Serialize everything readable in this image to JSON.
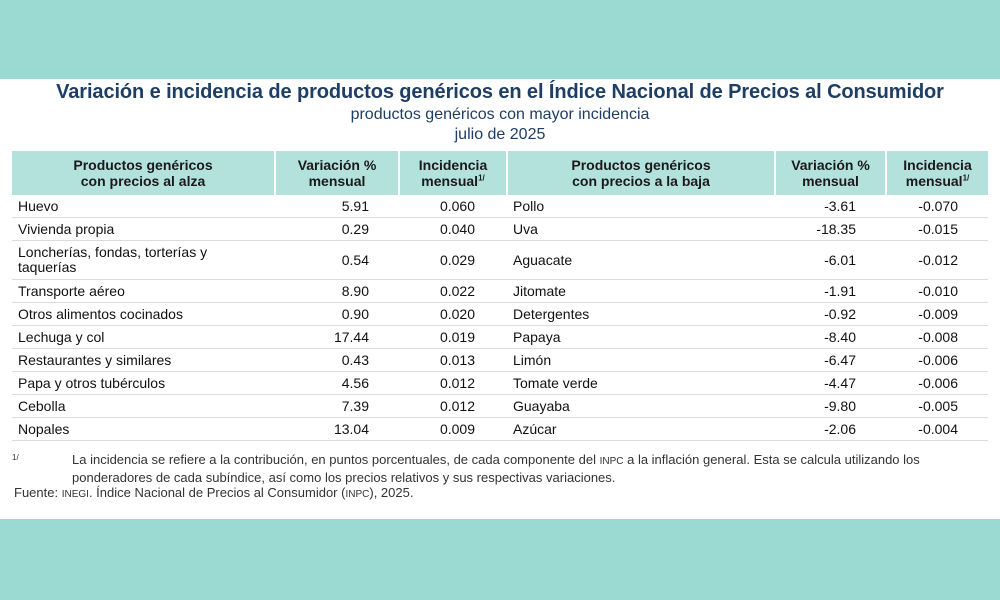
{
  "header": {
    "title": "Variación e incidencia de productos genéricos en el Índice Nacional de Precios al Consumidor",
    "subtitle": "productos genéricos con mayor incidencia",
    "period": "julio de 2025"
  },
  "table": {
    "headers": {
      "up_product_line1": "Productos genéricos",
      "up_product_line2": "con precios al alza",
      "variation_line1": "Variación %",
      "variation_line2": "mensual",
      "incidence_line1": "Incidencia",
      "incidence_line2": "mensual",
      "footnote_mark": "1/",
      "down_product_line1": "Productos genéricos",
      "down_product_line2": "con precios a la baja"
    },
    "rows": [
      {
        "up": "Huevo",
        "up_var": "5.91",
        "up_inc": "0.060",
        "down": "Pollo",
        "down_var": "-3.61",
        "down_inc": "-0.070"
      },
      {
        "up": "Vivienda propia",
        "up_var": "0.29",
        "up_inc": "0.040",
        "down": "Uva",
        "down_var": "-18.35",
        "down_inc": "-0.015"
      },
      {
        "up": "Loncherías, fondas, torterías y taquerías",
        "up_var": "0.54",
        "up_inc": "0.029",
        "down": "Aguacate",
        "down_var": "-6.01",
        "down_inc": "-0.012"
      },
      {
        "up": "Transporte aéreo",
        "up_var": "8.90",
        "up_inc": "0.022",
        "down": "Jitomate",
        "down_var": "-1.91",
        "down_inc": "-0.010"
      },
      {
        "up": "Otros alimentos cocinados",
        "up_var": "0.90",
        "up_inc": "0.020",
        "down": "Detergentes",
        "down_var": "-0.92",
        "down_inc": "-0.009"
      },
      {
        "up": "Lechuga y col",
        "up_var": "17.44",
        "up_inc": "0.019",
        "down": "Papaya",
        "down_var": "-8.40",
        "down_inc": "-0.008"
      },
      {
        "up": "Restaurantes y similares",
        "up_var": "0.43",
        "up_inc": "0.013",
        "down": "Limón",
        "down_var": "-6.47",
        "down_inc": "-0.006"
      },
      {
        "up": "Papa y otros tubérculos",
        "up_var": "4.56",
        "up_inc": "0.012",
        "down": "Tomate verde",
        "down_var": "-4.47",
        "down_inc": "-0.006"
      },
      {
        "up": "Cebolla",
        "up_var": "7.39",
        "up_inc": "0.012",
        "down": "Guayaba",
        "down_var": "-9.80",
        "down_inc": "-0.005"
      },
      {
        "up": "Nopales",
        "up_var": "13.04",
        "up_inc": "0.009",
        "down": "Azúcar",
        "down_var": "-2.06",
        "down_inc": "-0.004"
      }
    ]
  },
  "footnote": {
    "mark": "1/",
    "text_part1": "La incidencia se refiere a la contribución, en puntos porcentuales, de cada componente del ",
    "acronym": "INPC",
    "text_part2": " a la inflación general. Esta se calcula utilizando los ponderadores de cada subíndice, así como los precios relativos y sus respectivas variaciones."
  },
  "source": {
    "label": "Fuente: ",
    "org": "INEGI",
    "text1": ". Índice Nacional de Precios al Consumidor (",
    "acronym": "INPC",
    "text2": "), 2025."
  },
  "colors": {
    "background": "#9bd9d3",
    "header_fill": "#b3e1dc",
    "title": "#1f3e63"
  }
}
